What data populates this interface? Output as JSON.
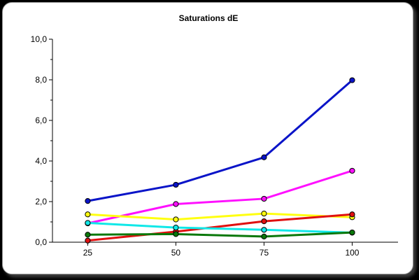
{
  "chart_data": {
    "type": "line",
    "title": "Saturations dE",
    "xlabel": "",
    "ylabel": "",
    "x": [
      25,
      50,
      75,
      100
    ],
    "x_ticks": [
      "25",
      "50",
      "75",
      "100"
    ],
    "xlim": [
      15,
      113
    ],
    "ylim": [
      0,
      10
    ],
    "y_ticks": [
      "0,0",
      "2,0",
      "4,0",
      "6,0",
      "8,0",
      "10,0"
    ],
    "grid": false,
    "legend": "none",
    "series": [
      {
        "color": "#0a14c8",
        "values": [
          2.03,
          2.83,
          4.18,
          7.98
        ]
      },
      {
        "color": "#ff10ff",
        "values": [
          0.93,
          1.88,
          2.14,
          3.52
        ]
      },
      {
        "color": "#ffff10",
        "values": [
          1.37,
          1.12,
          1.41,
          1.23
        ]
      },
      {
        "color": "#e01010",
        "values": [
          0.08,
          0.52,
          1.03,
          1.37
        ]
      },
      {
        "color": "#10e8e8",
        "values": [
          0.95,
          0.72,
          0.61,
          0.47
        ]
      },
      {
        "color": "#0a780a",
        "values": [
          0.37,
          0.4,
          0.28,
          0.48
        ]
      }
    ]
  }
}
